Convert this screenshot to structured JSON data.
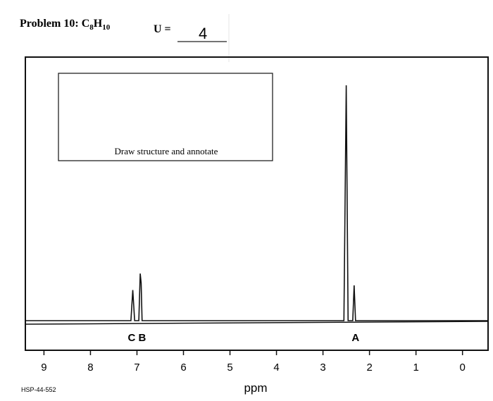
{
  "header": {
    "title": "Problem 10: ",
    "formula": [
      {
        "text": "C",
        "sub": "8"
      },
      {
        "text": "H",
        "sub": "10"
      }
    ],
    "u_label": "U =",
    "u_answer": "4"
  },
  "chart_data": {
    "type": "line",
    "instruction": "Draw structure and annotate",
    "xlabel": "ppm",
    "code": "HSP-44-552",
    "x": [
      9.4,
      7.13,
      7.09,
      7.05,
      6.96,
      6.93,
      6.91,
      6.89,
      2.55,
      2.5,
      2.46,
      2.36,
      2.33,
      2.3,
      -0.55
    ],
    "values": [
      0,
      0,
      13,
      0,
      0,
      20,
      16,
      0,
      0,
      100,
      0,
      0,
      15,
      0,
      0
    ],
    "color": "#111111",
    "xlim": [
      9.4,
      -0.55
    ],
    "ylim": [
      0,
      112
    ],
    "xticks": [
      9,
      8,
      7,
      6,
      5,
      4,
      3,
      2,
      1,
      0
    ],
    "annotations": [
      {
        "text": "C B",
        "x": 7.0
      },
      {
        "text": "A",
        "x": 2.3
      }
    ]
  }
}
